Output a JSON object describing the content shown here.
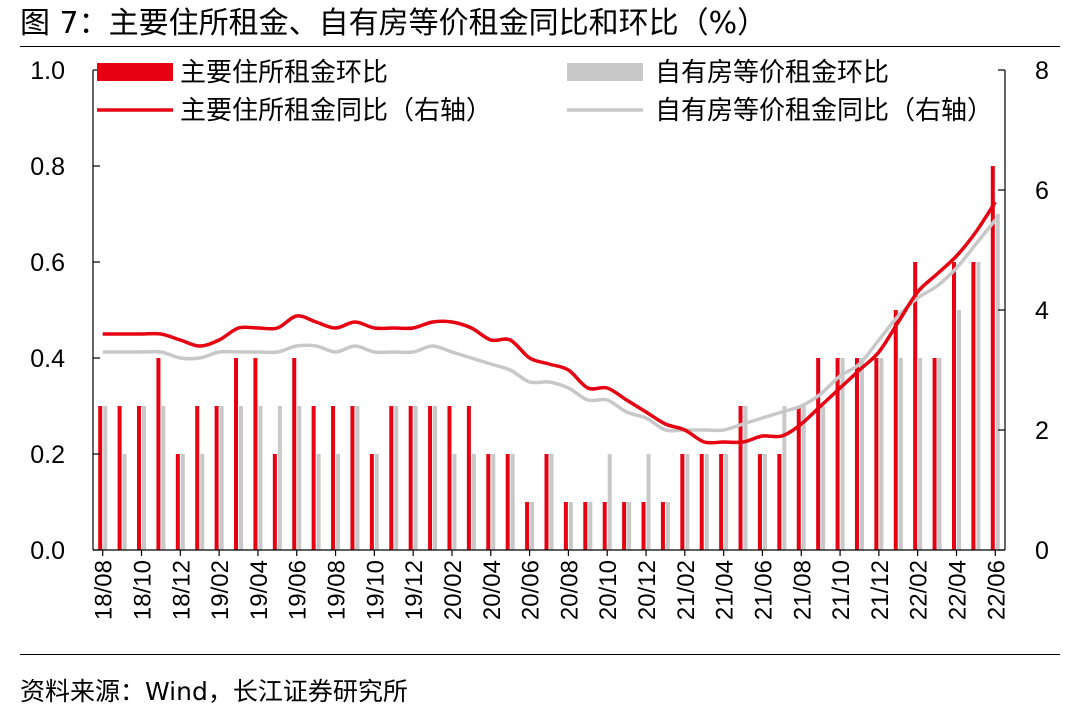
{
  "page": {
    "title": "图 7：主要住所租金、自有房等价租金同比和环比（%）",
    "source": "资料来源：Wind，长江证券研究所"
  },
  "colors": {
    "primary_red": "#e60012",
    "secondary_gray": "#c8c8c8",
    "axis": "#000000"
  },
  "chart_data": {
    "type": "bar",
    "title": "主要住所租金、自有房等价租金同比和环比（%）",
    "x": [
      "18/08",
      "18/09",
      "18/10",
      "18/11",
      "18/12",
      "19/01",
      "19/02",
      "19/03",
      "19/04",
      "19/05",
      "19/06",
      "19/07",
      "19/08",
      "19/09",
      "19/10",
      "19/11",
      "19/12",
      "20/01",
      "20/02",
      "20/03",
      "20/04",
      "20/05",
      "20/06",
      "20/07",
      "20/08",
      "20/09",
      "20/10",
      "20/11",
      "20/12",
      "21/01",
      "21/02",
      "21/03",
      "21/04",
      "21/05",
      "21/06",
      "21/07",
      "21/08",
      "21/09",
      "21/10",
      "21/11",
      "21/12",
      "22/01",
      "22/02",
      "22/03",
      "22/04",
      "22/05",
      "22/06"
    ],
    "xtick_labels": [
      "18/08",
      "18/10",
      "18/12",
      "19/02",
      "19/04",
      "19/06",
      "19/08",
      "19/10",
      "19/12",
      "20/02",
      "20/04",
      "20/06",
      "20/08",
      "20/10",
      "20/12",
      "21/02",
      "21/04",
      "21/06",
      "21/08",
      "21/10",
      "21/12",
      "22/02",
      "22/04",
      "22/06"
    ],
    "y_left": {
      "min": 0.0,
      "max": 1.0,
      "ticks": [
        "0.0",
        "0.2",
        "0.4",
        "0.6",
        "0.8",
        "1.0"
      ]
    },
    "y_right": {
      "min": 0,
      "max": 8,
      "ticks": [
        "0",
        "2",
        "4",
        "6",
        "8"
      ]
    },
    "series": [
      {
        "name": "主要住所租金环比",
        "kind": "bar",
        "axis": "left",
        "color": "#e60012",
        "values": [
          0.3,
          0.3,
          0.3,
          0.4,
          0.2,
          0.3,
          0.3,
          0.4,
          0.4,
          0.2,
          0.4,
          0.3,
          0.3,
          0.3,
          0.2,
          0.3,
          0.3,
          0.3,
          0.3,
          0.3,
          0.2,
          0.2,
          0.1,
          0.2,
          0.1,
          0.1,
          0.1,
          0.1,
          0.1,
          0.1,
          0.2,
          0.2,
          0.2,
          0.3,
          0.2,
          0.2,
          0.3,
          0.4,
          0.4,
          0.4,
          0.4,
          0.5,
          0.6,
          0.4,
          0.6,
          0.6,
          0.8
        ]
      },
      {
        "name": "自有房等价租金环比",
        "kind": "bar",
        "axis": "left",
        "color": "#c8c8c8",
        "values": [
          0.3,
          0.2,
          0.3,
          0.3,
          0.2,
          0.2,
          0.3,
          0.3,
          0.3,
          0.3,
          0.3,
          0.2,
          0.2,
          0.3,
          0.2,
          0.3,
          0.3,
          0.3,
          0.2,
          0.2,
          0.2,
          0.2,
          0.1,
          0.2,
          0.1,
          0.1,
          0.2,
          0.1,
          0.2,
          0.1,
          0.2,
          0.2,
          0.2,
          0.3,
          0.2,
          0.3,
          0.3,
          0.3,
          0.4,
          0.4,
          0.4,
          0.4,
          0.4,
          0.4,
          0.5,
          0.6,
          0.7
        ]
      },
      {
        "name": "主要住所租金同比（右轴）",
        "kind": "line",
        "axis": "right",
        "color": "#e60012",
        "values": [
          3.6,
          3.6,
          3.6,
          3.6,
          3.5,
          3.4,
          3.5,
          3.7,
          3.7,
          3.7,
          3.9,
          3.8,
          3.7,
          3.8,
          3.7,
          3.7,
          3.7,
          3.8,
          3.8,
          3.7,
          3.5,
          3.5,
          3.2,
          3.1,
          3.0,
          2.7,
          2.7,
          2.5,
          2.3,
          2.1,
          2.0,
          1.8,
          1.8,
          1.8,
          1.9,
          1.9,
          2.1,
          2.4,
          2.7,
          3.0,
          3.3,
          3.8,
          4.3,
          4.6,
          4.9,
          5.3,
          5.8
        ]
      },
      {
        "name": "自有房等价租金同比（右轴）",
        "kind": "line",
        "axis": "right",
        "color": "#c8c8c8",
        "values": [
          3.3,
          3.3,
          3.3,
          3.3,
          3.2,
          3.2,
          3.3,
          3.3,
          3.3,
          3.3,
          3.4,
          3.4,
          3.3,
          3.4,
          3.3,
          3.3,
          3.3,
          3.4,
          3.3,
          3.2,
          3.1,
          3.0,
          2.8,
          2.8,
          2.7,
          2.5,
          2.5,
          2.3,
          2.2,
          2.0,
          2.0,
          2.0,
          2.0,
          2.1,
          2.2,
          2.3,
          2.4,
          2.6,
          2.9,
          3.1,
          3.5,
          3.9,
          4.2,
          4.4,
          4.7,
          5.1,
          5.5
        ]
      }
    ],
    "legend": [
      {
        "label": "主要住所租金环比",
        "swatch": "bar",
        "color": "#e60012"
      },
      {
        "label": "自有房等价租金环比",
        "swatch": "bar",
        "color": "#c8c8c8"
      },
      {
        "label": "主要住所租金同比（右轴）",
        "swatch": "line",
        "color": "#e60012"
      },
      {
        "label": "自有房等价租金同比（右轴）",
        "swatch": "line",
        "color": "#c8c8c8"
      }
    ],
    "legend_position": "top"
  }
}
